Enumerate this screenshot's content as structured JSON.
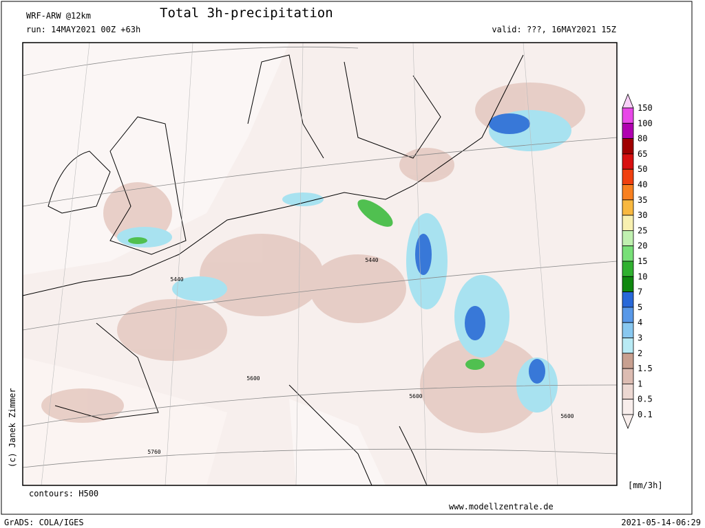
{
  "header": {
    "model": "WRF-ARW @12km",
    "title": "Total 3h-precipitation",
    "run": "run: 14MAY2021 00Z +63h",
    "valid": "valid: ???, 16MAY2021 15Z"
  },
  "colorbar": {
    "unit": "[mm/3h]",
    "labels": [
      "150",
      "100",
      "80",
      "65",
      "50",
      "40",
      "35",
      "30",
      "25",
      "20",
      "15",
      "10",
      "7",
      "5",
      "4",
      "3",
      "2",
      "1.5",
      "1",
      "0.5",
      "0.1"
    ],
    "colors": [
      "#f8d0f8",
      "#e848e8",
      "#b000b0",
      "#a00000",
      "#d81010",
      "#f04010",
      "#f88020",
      "#f8b840",
      "#f8f0b0",
      "#c0f0b0",
      "#78e078",
      "#30b030",
      "#108810",
      "#2868d8",
      "#5898e8",
      "#88c8f0",
      "#b8eaf4",
      "#c8a090",
      "#dcbcb2",
      "#ecd8d2",
      "#f8eeec"
    ]
  },
  "map": {
    "contour_labels": [
      "5440",
      "5440",
      "5600",
      "5600",
      "5600",
      "5760"
    ],
    "credit": "(c) Janek Zimmer",
    "contours_note": "contours: H500",
    "website": "www.modellzentrale.de"
  },
  "footer": {
    "software": "GrADS: COLA/IGES",
    "timestamp": "2021-05-14-06:29"
  }
}
